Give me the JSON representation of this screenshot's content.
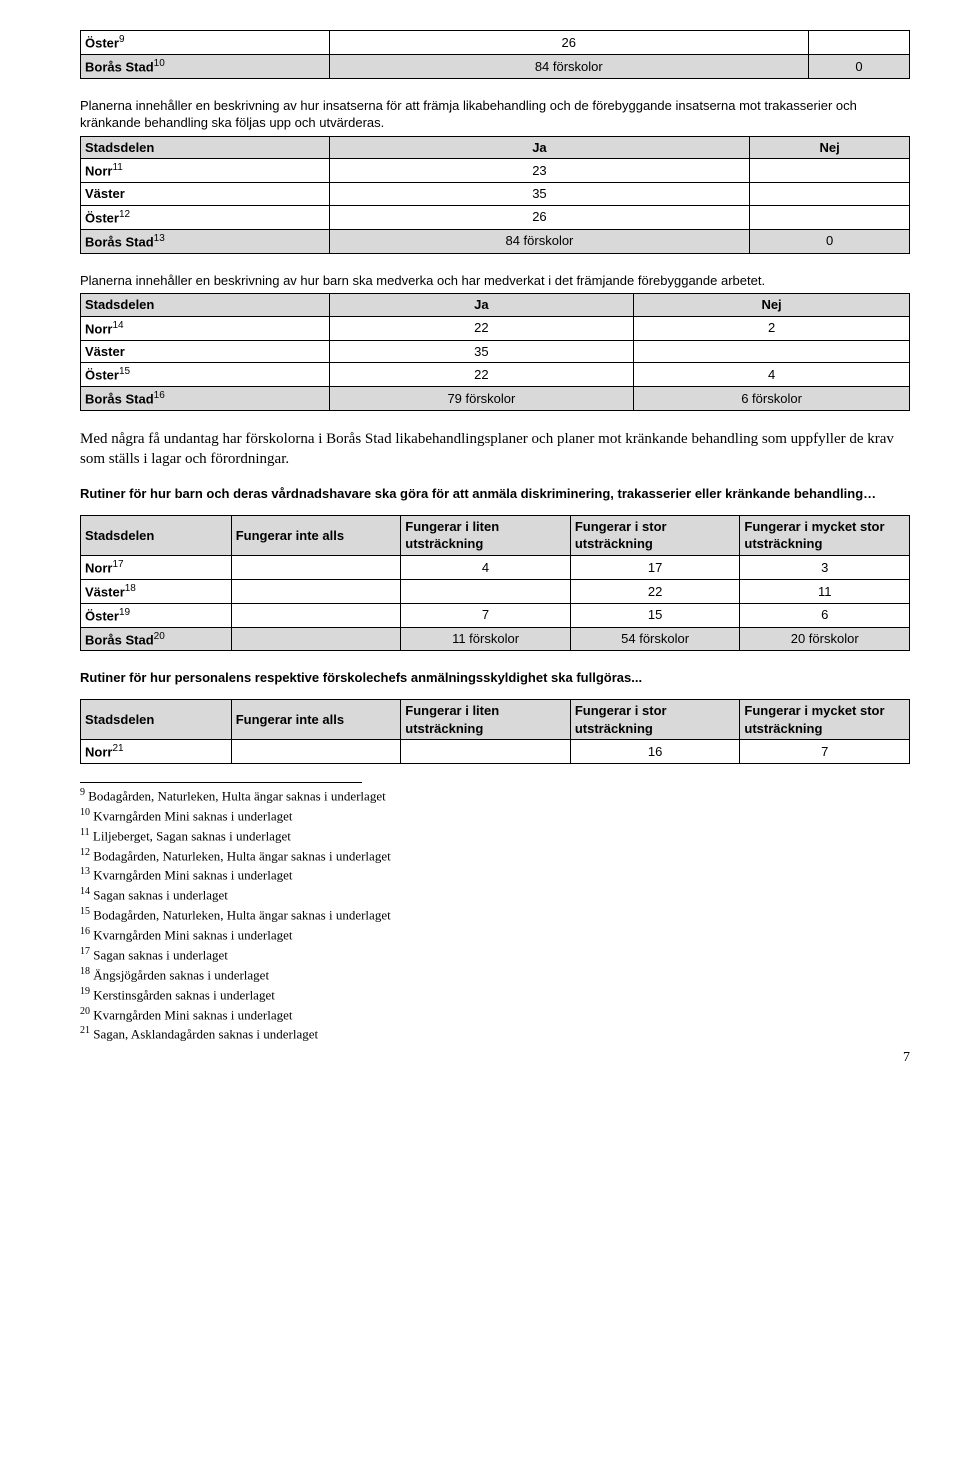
{
  "table1": {
    "rows": [
      {
        "label": "Öster",
        "sup": "9",
        "ja": "26",
        "nej": "",
        "shaded": false
      },
      {
        "label": "Borås Stad",
        "sup": "10",
        "ja": "84 förskolor",
        "nej": "0",
        "shaded": true
      }
    ]
  },
  "intro2": "Planerna innehåller en beskrivning av hur insatserna för att främja likabehandling och de förebyggande insatserna mot trakasserier och kränkande behandling ska följas upp och utvärderas.",
  "table2": {
    "header": {
      "c1": "Stadsdelen",
      "c2": "Ja",
      "c3": "Nej"
    },
    "rows": [
      {
        "label": "Norr",
        "sup": "11",
        "ja": "23",
        "nej": "",
        "shaded": false
      },
      {
        "label": "Väster",
        "sup": "",
        "ja": "35",
        "nej": "",
        "shaded": false
      },
      {
        "label": "Öster",
        "sup": "12",
        "ja": "26",
        "nej": "",
        "shaded": false
      },
      {
        "label": "Borås Stad",
        "sup": "13",
        "ja": "84 förskolor",
        "nej": "0",
        "shaded": true
      }
    ]
  },
  "intro3": "Planerna innehåller en beskrivning av hur barn ska medverka och har medverkat i det främjande förebyggande arbetet.",
  "table3": {
    "header": {
      "c1": "Stadsdelen",
      "c2": "Ja",
      "c3": "Nej"
    },
    "rows": [
      {
        "label": "Norr",
        "sup": "14",
        "ja": "22",
        "nej": "2",
        "shaded": false
      },
      {
        "label": "Väster",
        "sup": "",
        "ja": "35",
        "nej": "",
        "shaded": false
      },
      {
        "label": "Öster",
        "sup": "15",
        "ja": "22",
        "nej": "4",
        "shaded": false
      },
      {
        "label": "Borås Stad",
        "sup": "16",
        "ja": "79 förskolor",
        "nej": "6 förskolor",
        "shaded": true
      }
    ]
  },
  "body_paragraph": "Med några få undantag har förskolorna i Borås Stad likabehandlingsplaner och planer mot kränkande behandling som uppfyller de krav som ställs i lagar och förordningar.",
  "section4_title": "Rutiner för hur barn och deras vårdnadshavare ska göra för att anmäla diskriminering, trakasserier eller kränkande behandling…",
  "table4": {
    "header": {
      "c1": "Stadsdelen",
      "c2": "Fungerar inte alls",
      "c3": "Fungerar i liten utsträckning",
      "c4": "Fungerar i stor utsträckning",
      "c5": "Fungerar i mycket stor utsträckning"
    },
    "rows": [
      {
        "label": "Norr",
        "sup": "17",
        "v2": "",
        "v3": "4",
        "v4": "17",
        "v5": "3",
        "shaded": false
      },
      {
        "label": "Väster",
        "sup": "18",
        "v2": "",
        "v3": "",
        "v4": "22",
        "v5": "11",
        "shaded": false
      },
      {
        "label": "Öster",
        "sup": "19",
        "v2": "",
        "v3": "7",
        "v4": "15",
        "v5": "6",
        "shaded": false
      },
      {
        "label": "Borås Stad",
        "sup": "20",
        "v2": "",
        "v3": "11 förskolor",
        "v4": "54 förskolor",
        "v5": "20 förskolor",
        "shaded": true
      }
    ]
  },
  "section5_title": "Rutiner för hur personalens respektive förskolechefs anmälningsskyldighet ska fullgöras...",
  "table5": {
    "header": {
      "c1": "Stadsdelen",
      "c2": "Fungerar inte alls",
      "c3": "Fungerar i liten utsträckning",
      "c4": "Fungerar i stor utsträckning",
      "c5": "Fungerar i mycket stor utsträckning"
    },
    "rows": [
      {
        "label": "Norr",
        "sup": "21",
        "v2": "",
        "v3": "",
        "v4": "16",
        "v5": "7",
        "shaded": false
      }
    ]
  },
  "footnotes": [
    {
      "n": "9",
      "text": "Bodagården, Naturleken, Hulta ängar saknas i underlaget"
    },
    {
      "n": "10",
      "text": "Kvarngården Mini saknas i underlaget"
    },
    {
      "n": "11",
      "text": "Liljeberget, Sagan saknas i underlaget"
    },
    {
      "n": "12",
      "text": "Bodagården, Naturleken, Hulta ängar saknas i underlaget"
    },
    {
      "n": "13",
      "text": "Kvarngården Mini saknas i underlaget"
    },
    {
      "n": "14",
      "text": "Sagan saknas i underlaget"
    },
    {
      "n": "15",
      "text": "Bodagården, Naturleken, Hulta ängar saknas i underlaget"
    },
    {
      "n": "16",
      "text": "Kvarngården Mini saknas i underlaget"
    },
    {
      "n": "17",
      "text": "Sagan saknas i underlaget"
    },
    {
      "n": "18",
      "text": "Ängsjögården saknas i underlaget"
    },
    {
      "n": "19",
      "text": "Kerstinsgården saknas i underlaget"
    },
    {
      "n": "20",
      "text": "Kvarngården Mini saknas i underlaget"
    },
    {
      "n": "21",
      "text": "Sagan, Asklandagården saknas i underlaget"
    }
  ],
  "page_number": "7"
}
